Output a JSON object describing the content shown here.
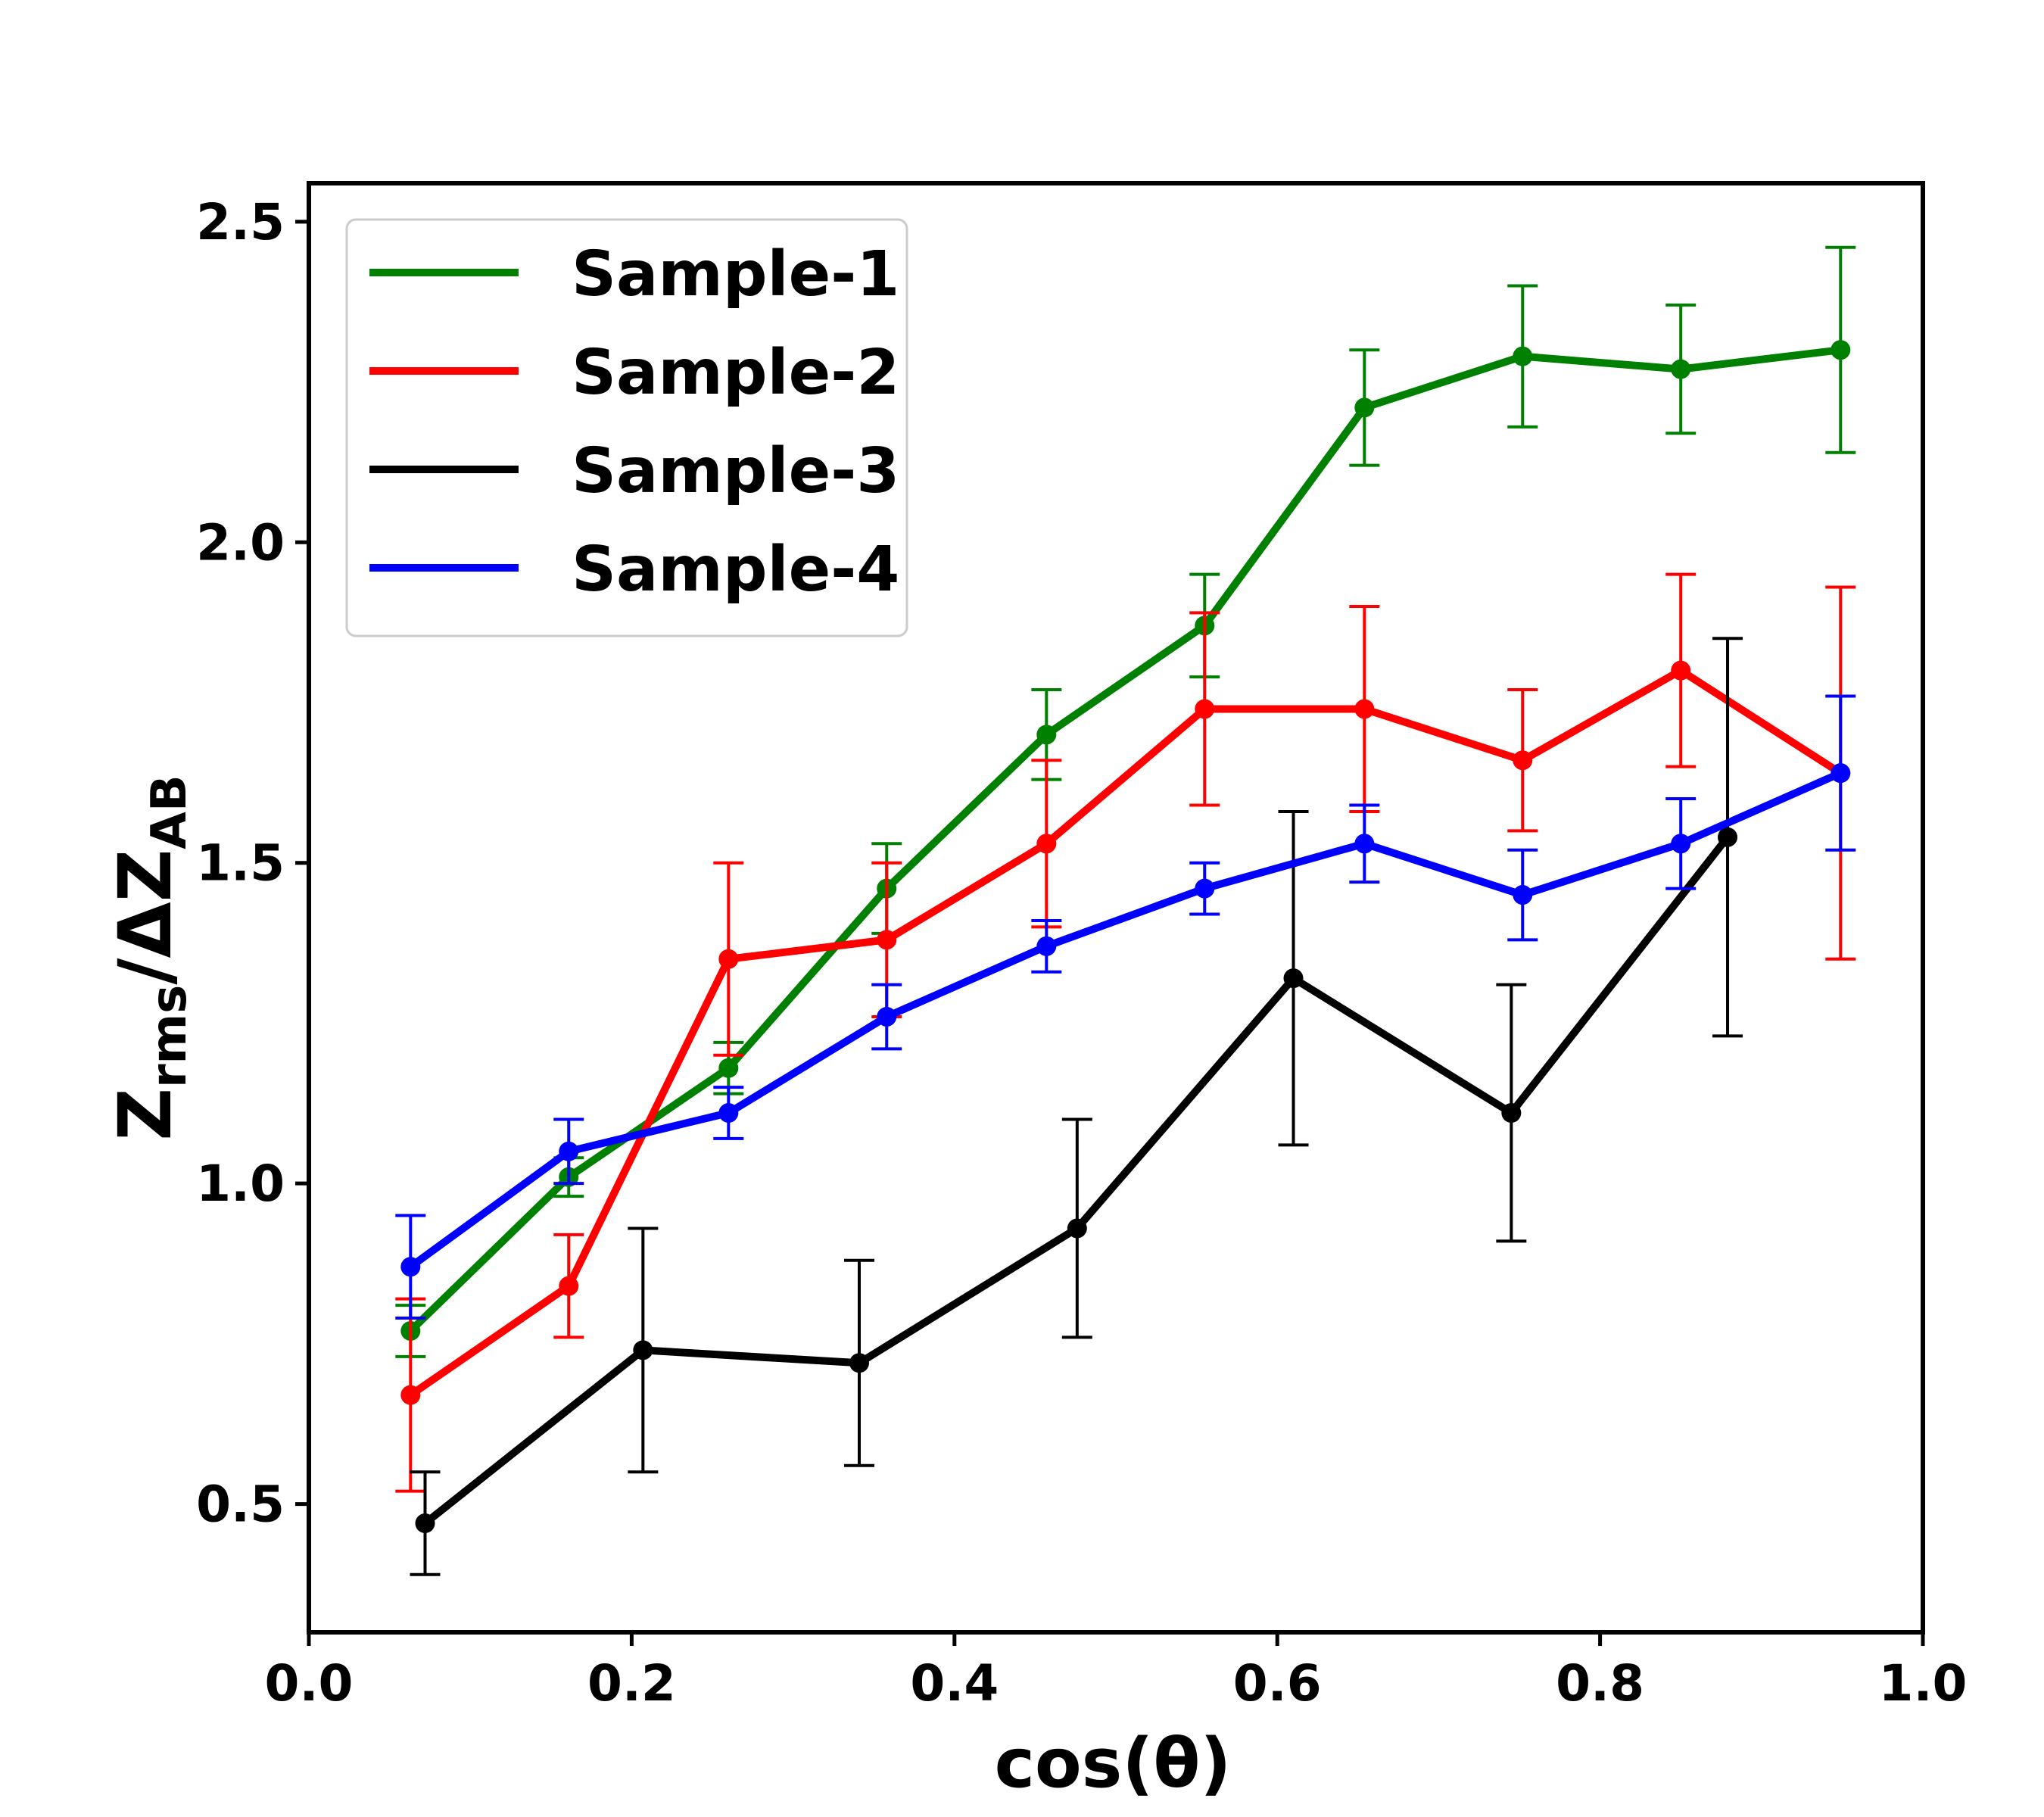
{
  "chart_data": {
    "type": "line",
    "xlabel": "cos(θ)",
    "ylabel": {
      "main": "Z",
      "sub": "rms",
      "sep": "/ΔZ",
      "sub2": "AB"
    },
    "xlim": [
      0.0,
      1.0
    ],
    "ylim": [
      0.3,
      2.56
    ],
    "xticks": [
      0.0,
      0.2,
      0.4,
      0.6,
      0.8,
      1.0
    ],
    "xtick_labels": [
      "0.0",
      "0.2",
      "0.4",
      "0.6",
      "0.8",
      "1.0"
    ],
    "yticks": [
      0.5,
      1.0,
      1.5,
      2.0,
      2.5
    ],
    "ytick_labels": [
      "0.5",
      "1.0",
      "1.5",
      "2.0",
      "2.5"
    ],
    "grid": false,
    "legend_position": "top-left",
    "series": [
      {
        "name": "Sample-1",
        "color": "#008000",
        "x": [
          0.063,
          0.161,
          0.26,
          0.358,
          0.457,
          0.555,
          0.654,
          0.752,
          0.85,
          0.949
        ],
        "y": [
          0.77,
          1.01,
          1.18,
          1.46,
          1.7,
          1.87,
          2.21,
          2.29,
          2.27,
          2.3
        ],
        "yerr": [
          0.04,
          0.03,
          0.04,
          0.07,
          0.07,
          0.08,
          0.09,
          0.11,
          0.1,
          0.16
        ]
      },
      {
        "name": "Sample-2",
        "color": "#ff0000",
        "x": [
          0.063,
          0.161,
          0.26,
          0.358,
          0.457,
          0.555,
          0.654,
          0.752,
          0.85,
          0.949
        ],
        "y": [
          0.67,
          0.84,
          1.35,
          1.38,
          1.53,
          1.74,
          1.74,
          1.66,
          1.8,
          1.64
        ],
        "yerr": [
          0.15,
          0.08,
          0.15,
          0.12,
          0.13,
          0.15,
          0.16,
          0.11,
          0.15,
          0.29
        ]
      },
      {
        "name": "Sample-3",
        "color": "#000000",
        "x": [
          0.072,
          0.207,
          0.341,
          0.476,
          0.61,
          0.745,
          0.879
        ],
        "y": [
          0.47,
          0.74,
          0.72,
          0.93,
          1.32,
          1.11,
          1.54
        ],
        "yerr": [
          0.08,
          0.19,
          0.16,
          0.17,
          0.26,
          0.2,
          0.31
        ]
      },
      {
        "name": "Sample-4",
        "color": "#0000ff",
        "x": [
          0.063,
          0.161,
          0.26,
          0.358,
          0.457,
          0.555,
          0.654,
          0.752,
          0.85,
          0.949
        ],
        "y": [
          0.87,
          1.05,
          1.11,
          1.26,
          1.37,
          1.46,
          1.53,
          1.45,
          1.53,
          1.64
        ],
        "yerr": [
          0.08,
          0.05,
          0.04,
          0.05,
          0.04,
          0.04,
          0.06,
          0.07,
          0.07,
          0.12
        ]
      }
    ]
  }
}
